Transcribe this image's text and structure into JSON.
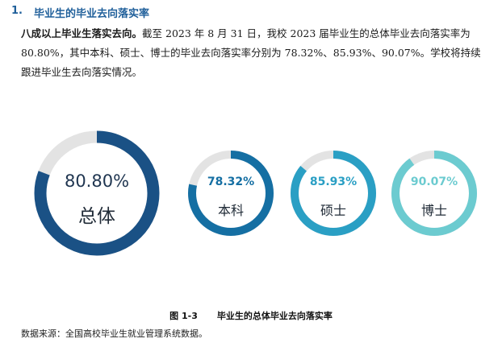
{
  "section": {
    "number": "1.",
    "title": "毕业生的毕业去向落实率"
  },
  "paragraph": {
    "lead": "八成以上毕业生落实去向。",
    "body": "截至 2023 年 8 月 31 日，我校 2023 届毕业生的总体毕业去向落实率为 80.80%，其中本科、硕士、博士的毕业去向落实率分别为 78.32%、85.93%、90.07%。学校将持续跟进毕业生去向落实情况。"
  },
  "chart_data": {
    "type": "pie",
    "series": [
      {
        "pct_label": "80.80%",
        "label": "总体",
        "value": 80.8,
        "color": "#1a5185"
      },
      {
        "pct_label": "78.32%",
        "label": "本科",
        "value": 78.32,
        "color": "#156fa3"
      },
      {
        "pct_label": "85.93%",
        "label": "硕士",
        "value": 85.93,
        "color": "#2a9fc4"
      },
      {
        "pct_label": "90.07%",
        "label": "博士",
        "value": 90.07,
        "color": "#6ccbd0"
      }
    ],
    "track_color": "#e3e3e3"
  },
  "caption": {
    "figure_no": "图 1-3",
    "title": "毕业生的总体毕业去向落实率"
  },
  "source": "数据来源：全国高校毕业生就业管理系统数据。"
}
